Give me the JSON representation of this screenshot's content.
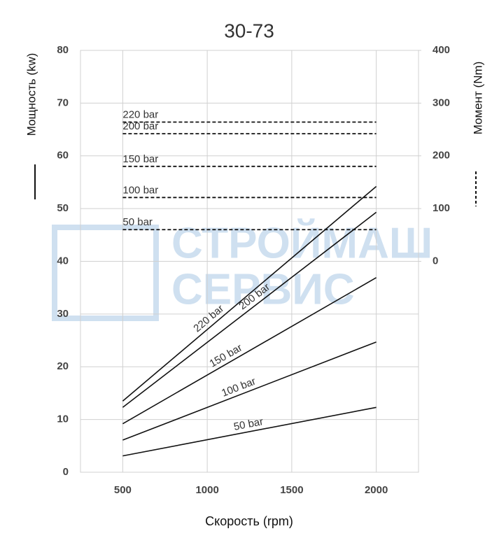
{
  "chart_data": {
    "type": "line",
    "title": "30-73",
    "xlabel": "Скорость (rpm)",
    "ylabel": "Мощность (kw)",
    "y2label": "Момент (Nm)",
    "watermark": [
      "СТРОЙМАШ",
      "СЕРВИС"
    ],
    "x": [
      500,
      2000
    ],
    "xlim": [
      250,
      2250
    ],
    "xticks": [
      500,
      1000,
      1500,
      2000
    ],
    "ylim": [
      0,
      80
    ],
    "yticks": [
      0,
      10,
      20,
      30,
      40,
      50,
      60,
      70,
      80
    ],
    "y2lim": [
      -400,
      400
    ],
    "y2ticks": [
      0,
      100,
      200,
      300,
      400
    ],
    "grid": true,
    "series": [
      {
        "name": "220 bar",
        "color": "#111111",
        "values": [
          13.5,
          54.2
        ]
      },
      {
        "name": "200 bar",
        "color": "#111111",
        "values": [
          12.3,
          49.3
        ]
      },
      {
        "name": "150 bar",
        "color": "#111111",
        "values": [
          9.2,
          36.9
        ]
      },
      {
        "name": "100 bar",
        "color": "#111111",
        "values": [
          6.1,
          24.7
        ]
      },
      {
        "name": "50 bar",
        "color": "#111111",
        "values": [
          3.1,
          12.3
        ]
      },
      {
        "name": "220 bar",
        "color": "#111111",
        "axis": "y2",
        "dashed": true,
        "values": [
          264,
          264
        ]
      },
      {
        "name": "200 bar",
        "color": "#111111",
        "axis": "y2",
        "dashed": true,
        "values": [
          242,
          242
        ]
      },
      {
        "name": "150 bar",
        "color": "#111111",
        "axis": "y2",
        "dashed": true,
        "values": [
          180,
          180
        ]
      },
      {
        "name": "100 bar",
        "color": "#111111",
        "axis": "y2",
        "dashed": true,
        "values": [
          121,
          121
        ]
      },
      {
        "name": "50 bar",
        "color": "#111111",
        "axis": "y2",
        "dashed": true,
        "values": [
          60,
          60
        ]
      }
    ]
  }
}
